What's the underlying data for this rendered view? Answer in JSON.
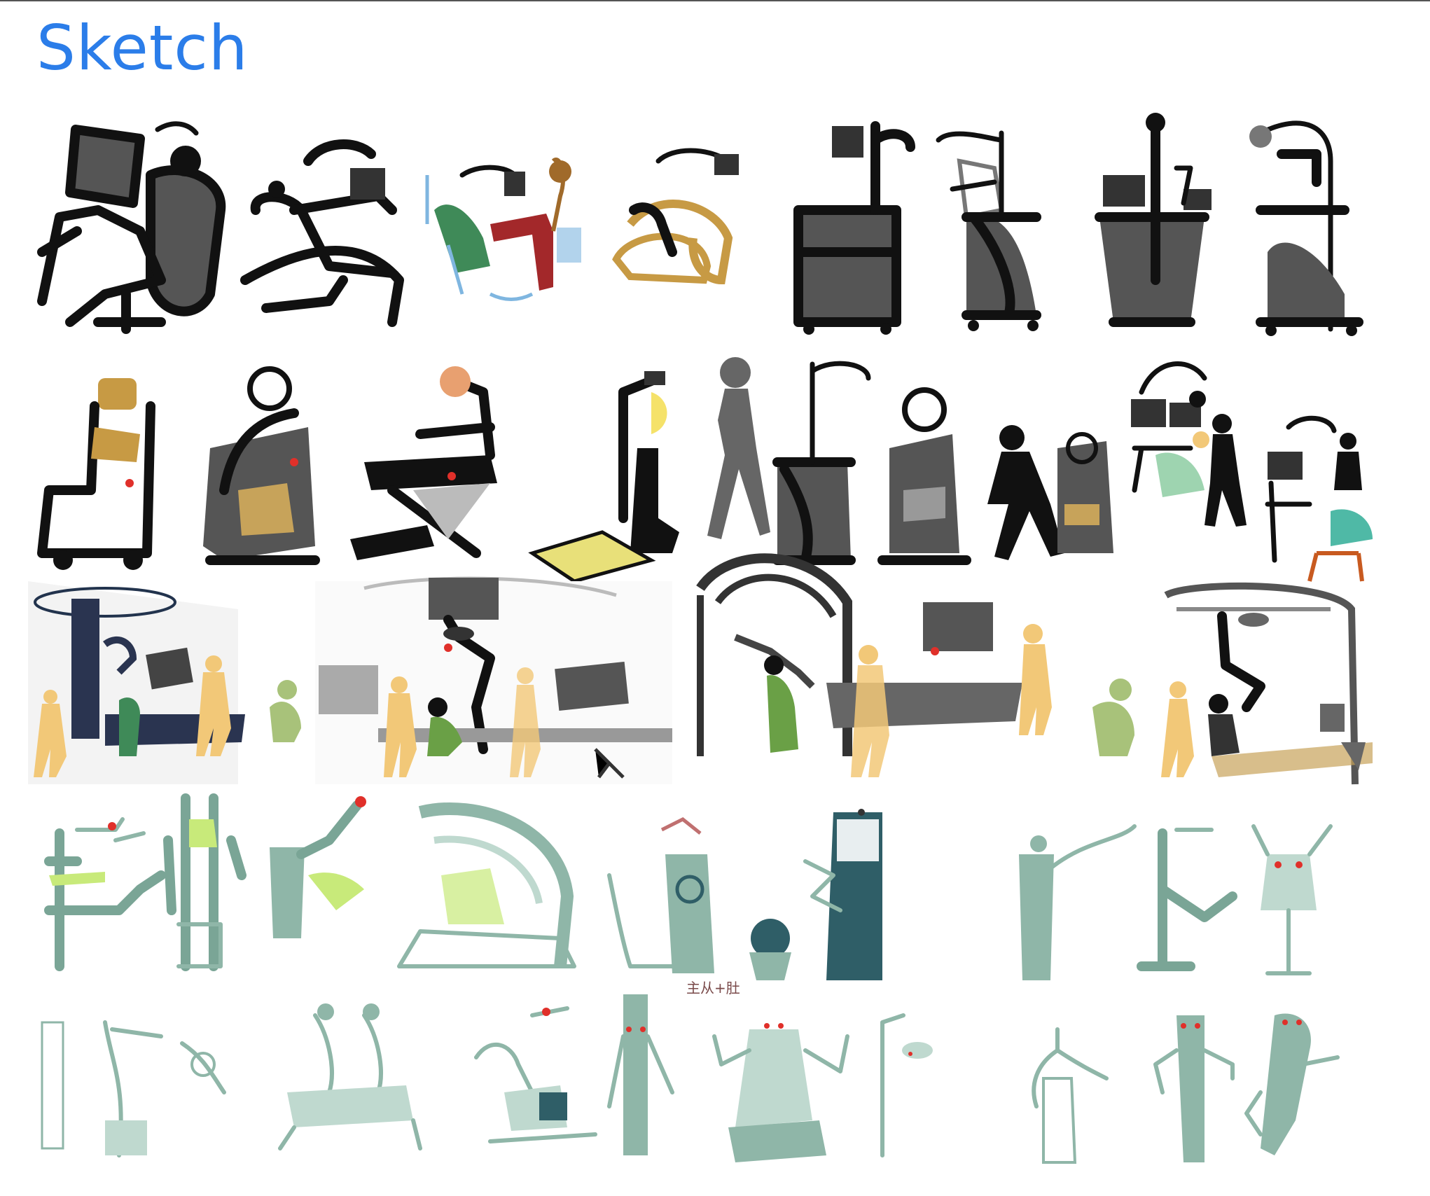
{
  "page": {
    "title": "Sketch",
    "title_color": "#2b7de9",
    "handwritten_note": "主从+肚"
  },
  "palette": {
    "ink": "#111111",
    "grey": "#555555",
    "ochre": "#c79a44",
    "maroon": "#a3282a",
    "sky": "#7fb6e0",
    "skin_yellow": "#f2c878",
    "olive": "#7fa34a",
    "sage_green": "#8fb6a8",
    "teal_dark": "#2f5e67",
    "lime": "#c8ea7a",
    "accent_red": "#e0302a"
  },
  "rows": [
    {
      "row": 1,
      "style": "black ink silhouettes",
      "sketches": [
        "dental-chair-with-monitor",
        "chair-with-console",
        "colored-concept-with-doctor",
        "ochre-chair-concept",
        "cart-with-arms",
        "arch-cart",
        "cart-with-screens",
        "tall-arm-cart"
      ]
    },
    {
      "row": 2,
      "style": "figures and chairs",
      "sketches": [
        "ochre-headrest-chair",
        "grey-frame-chair",
        "reclined-chair",
        "lamp-pole-station",
        "walking-woman-with-cart",
        "helmet-chair",
        "walking-man-with-chair",
        "operator-station-group",
        "operator-with-patient"
      ]
    },
    {
      "row": 3,
      "style": "room scenes",
      "sketches": [
        "column-room-scene",
        "ceiling-mount-room",
        "arch-gantry-room",
        "overhead-arm-room"
      ]
    },
    {
      "row": 4,
      "style": "sage robot concepts",
      "sketches": [
        "column-robot",
        "twin-arm-frame",
        "c-arm-bed",
        "tower-with-chair",
        "dark-teal-tower",
        "three-robots"
      ]
    },
    {
      "row": 5,
      "style": "sage line robots",
      "sketches": [
        "tall-column-arms",
        "twin-arm-base",
        "bench-arm",
        "vertical-arm-pole",
        "multi-arm-robot",
        "lamp-stand",
        "three-small-robots"
      ]
    }
  ]
}
